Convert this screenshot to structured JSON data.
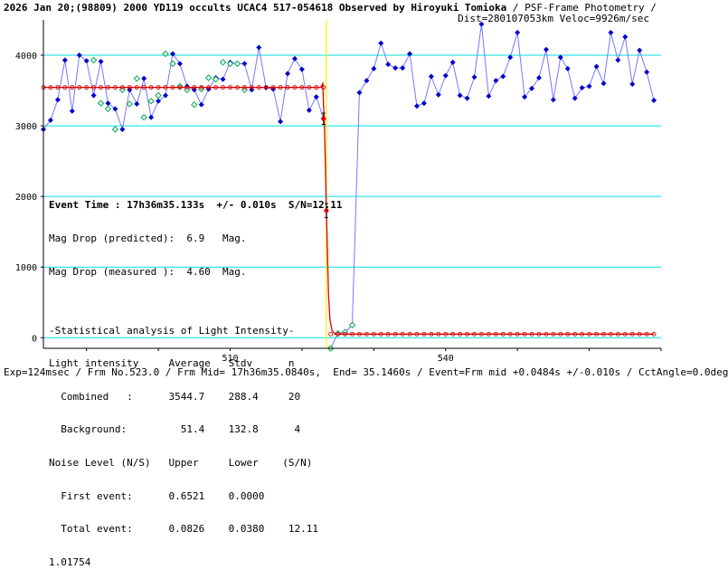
{
  "header": {
    "line1_bold": "2026 Jan 20;(98809) 2000 YD119 occults UCAC4 517-054618 Observed by Hiroyuki Tomioka",
    "line1_rest": " / PSF-Frame Photometry /",
    "line2": "Dist=280107053km Veloc=9926m/sec"
  },
  "stats": {
    "event_time": "Event Time : 17h36m35.133s  +/- 0.010s  S/N=12.11",
    "mag_drop_pred": "Mag Drop (predicted):  6.9   Mag.",
    "mag_drop_meas": "Mag Drop (measured ):  4.60  Mag.",
    "stat_title": "-Statistical analysis of Light Intensity-",
    "li_head": "Light intensity     Average   Stdv      n",
    "combined": "  Combined   :      3544.7    288.4     20",
    "background": "  Background:         51.4    132.8      4",
    "noise_head": "Noise Level (N/S)   Upper     Lower    (S/N)",
    "first_event": "  First event:      0.6521    0.0000",
    "total_event": "  Total event:      0.0826    0.0380    12.11",
    "extra": "1.01754"
  },
  "footer": "Exp=124msec / Frm No.523.0 / Frm Mid= 17h36m35.0840s,  End= 35.1460s / Event=Frm mid +0.0484s +/-0.010s / CctAngle=0.0deg",
  "colors": {
    "blue": "#0000cc",
    "green": "#00aa55",
    "red": "#dd0000",
    "cyan": "#00e0e0",
    "yellow": "#ffee00",
    "line_blue": "#7777ff"
  },
  "chart_data": {
    "type": "line",
    "xlim": [
      484,
      570
    ],
    "ylim": [
      -150,
      4500
    ],
    "x_ticks": [
      510,
      540
    ],
    "x_tick_labels": [
      "510",
      "540"
    ],
    "y_ticks": [
      0,
      1000,
      2000,
      3000,
      4000
    ],
    "y_tick_labels": [
      "0",
      "1000",
      "2000",
      "3000",
      "4000"
    ],
    "hlines": [
      0,
      1000,
      2000,
      3000,
      4000
    ],
    "event_x": 523.4,
    "series": [
      {
        "style": "blue-diamond",
        "x": [
          484,
          485,
          486,
          487,
          488,
          489,
          490,
          491,
          492,
          493,
          494,
          495,
          496,
          497,
          498,
          499,
          500,
          501,
          502,
          503,
          504,
          505,
          506,
          507,
          508,
          509,
          510,
          511,
          512,
          513,
          514,
          515,
          516,
          517,
          518,
          519,
          520,
          521,
          522,
          523
        ],
        "y": [
          2950,
          3080,
          3370,
          3930,
          3210,
          4000,
          3920,
          3430,
          3910,
          3320,
          3240,
          2950,
          3510,
          3310,
          3670,
          3120,
          3350,
          3430,
          4020,
          3880,
          3560,
          3510,
          3300,
          3520,
          3680,
          3660,
          3900,
          3880,
          3880,
          3510,
          4110,
          3540,
          3520,
          3060,
          3740,
          3950,
          3800,
          3220,
          3410,
          3100
        ]
      },
      {
        "style": "blue-diamond",
        "x": [
          524,
          525,
          526,
          527,
          528,
          529,
          530,
          531,
          532,
          533,
          534,
          535,
          536,
          537,
          538,
          539,
          540,
          541,
          542,
          543,
          544,
          545,
          546,
          547,
          548,
          549,
          550,
          551,
          552,
          553,
          554,
          555,
          556,
          557,
          558,
          559,
          560,
          561,
          562,
          563,
          564,
          565,
          566,
          567,
          568,
          569
        ],
        "y": [
          -150,
          60,
          80,
          180,
          3470,
          3640,
          3810,
          4170,
          3870,
          3820,
          3820,
          4020,
          3280,
          3320,
          3700,
          3440,
          3710,
          3900,
          3430,
          3390,
          3690,
          4440,
          3420,
          3640,
          3700,
          3970,
          4320,
          3410,
          3530,
          3680,
          4080,
          3370,
          3970,
          3810,
          3390,
          3540,
          3560,
          3840,
          3600,
          4320,
          3930,
          4260,
          3590,
          4070,
          3760,
          3360
        ]
      },
      {
        "style": "green-open",
        "x": [
          491,
          492,
          493,
          494,
          495,
          496,
          497,
          498,
          499,
          500,
          501,
          502,
          503,
          504,
          505,
          506,
          507,
          508,
          509,
          510,
          511,
          512,
          524,
          525,
          526,
          527
        ],
        "y": [
          3930,
          3320,
          3240,
          2950,
          3510,
          3310,
          3670,
          3120,
          3350,
          3430,
          4020,
          3880,
          3560,
          3510,
          3300,
          3520,
          3680,
          3660,
          3900,
          3880,
          3880,
          3510,
          -150,
          60,
          80,
          180
        ]
      },
      {
        "style": "red-open",
        "x": [
          484,
          485,
          486,
          487,
          488,
          489,
          490,
          491,
          492,
          493,
          494,
          495,
          496,
          497,
          498,
          499,
          500,
          501,
          502,
          503,
          504,
          505,
          506,
          507,
          508,
          509,
          510,
          511,
          512,
          513,
          514,
          515,
          516,
          517,
          518,
          519,
          520,
          521,
          522,
          523,
          524,
          525,
          526,
          527,
          528,
          529,
          530,
          531,
          532,
          533,
          534,
          535,
          536,
          537,
          538,
          539,
          540,
          541,
          542,
          543,
          544,
          545,
          546,
          547,
          548,
          549,
          550,
          551,
          552,
          553,
          554,
          555,
          556,
          557,
          558,
          559,
          560,
          561,
          562,
          563,
          564,
          565,
          566,
          567,
          568,
          569
        ],
        "y": [
          3544,
          3544,
          3544,
          3544,
          3544,
          3544,
          3544,
          3544,
          3544,
          3544,
          3544,
          3544,
          3544,
          3544,
          3544,
          3544,
          3544,
          3544,
          3544,
          3544,
          3544,
          3544,
          3544,
          3544,
          3544,
          3544,
          3544,
          3544,
          3544,
          3544,
          3544,
          3544,
          3544,
          3544,
          3544,
          3544,
          3544,
          3544,
          3544,
          3544,
          51,
          51,
          51,
          51,
          51,
          51,
          51,
          51,
          51,
          51,
          51,
          51,
          51,
          51,
          51,
          51,
          51,
          51,
          51,
          51,
          51,
          51,
          51,
          51,
          51,
          51,
          51,
          51,
          51,
          51,
          51,
          51,
          51,
          51,
          51,
          51,
          51,
          51,
          51,
          51,
          51,
          51,
          51,
          51,
          51,
          51
        ]
      },
      {
        "style": "red-model",
        "x": [
          484,
          522.6,
          522.9,
          523.0,
          523.1,
          523.25,
          523.4,
          523.55,
          523.7,
          523.9,
          524.2,
          524.6,
          569
        ],
        "y": [
          3544,
          3544,
          3600,
          3300,
          3100,
          2500,
          1800,
          1200,
          600,
          250,
          100,
          51,
          51
        ]
      },
      {
        "style": "error-bar",
        "x": [
          523.0,
          523.4
        ],
        "y": [
          3100,
          1800
        ],
        "err": [
          80,
          100
        ]
      }
    ]
  }
}
